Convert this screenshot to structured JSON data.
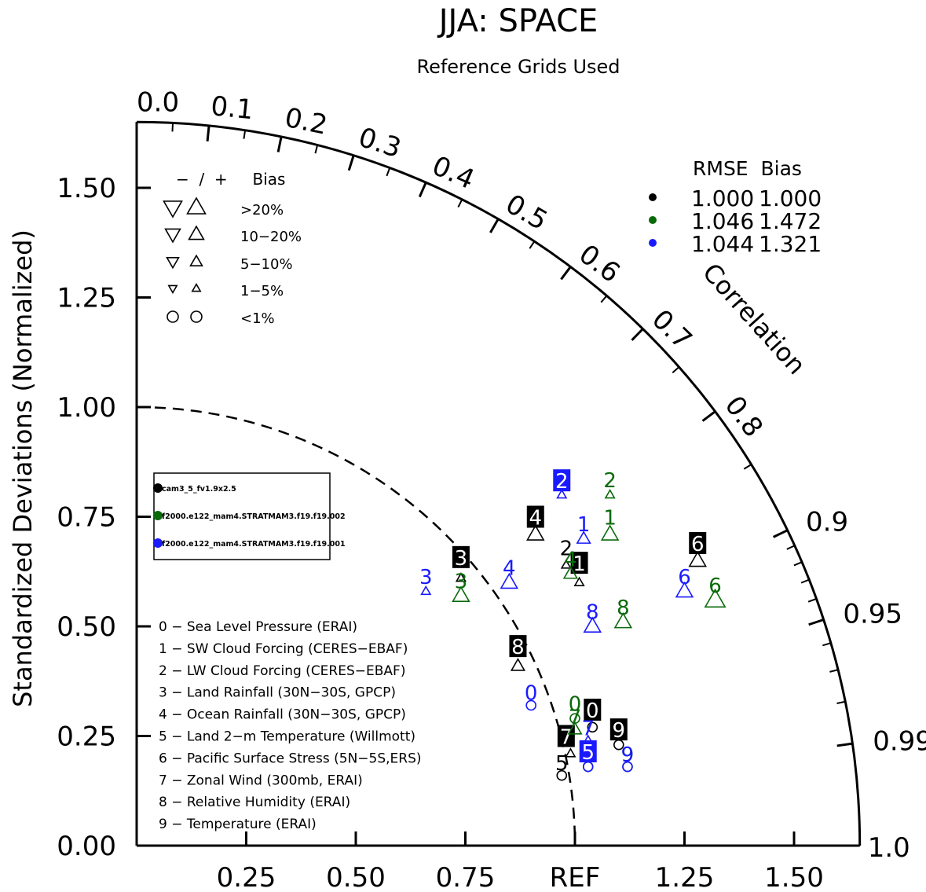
{
  "chart_data": {
    "type": "scatter",
    "subtype": "taylor-diagram",
    "title": "JJA: SPACE",
    "subtitle": "Reference Grids Used",
    "ylabel": "Standardized Deviations (Normalized)",
    "arc_label": "Correlation",
    "std_range": [
      0,
      1.65
    ],
    "reference_std": 1.0,
    "x_ticks": [
      {
        "value": 0.25,
        "label": "0.25"
      },
      {
        "value": 0.5,
        "label": "0.50"
      },
      {
        "value": 0.75,
        "label": "0.75"
      },
      {
        "value": 1.0,
        "label": "REF"
      },
      {
        "value": 1.25,
        "label": "1.25"
      },
      {
        "value": 1.5,
        "label": "1.50"
      }
    ],
    "y_ticks": [
      {
        "value": 0.0,
        "label": "0.00"
      },
      {
        "value": 0.25,
        "label": "0.25"
      },
      {
        "value": 0.5,
        "label": "0.50"
      },
      {
        "value": 0.75,
        "label": "0.75"
      },
      {
        "value": 1.0,
        "label": "1.00"
      },
      {
        "value": 1.25,
        "label": "1.25"
      },
      {
        "value": 1.5,
        "label": "1.50"
      }
    ],
    "correlation_ticks": [
      {
        "value": 0.0,
        "label": "0.0"
      },
      {
        "value": 0.1,
        "label": "0.1"
      },
      {
        "value": 0.2,
        "label": "0.2"
      },
      {
        "value": 0.3,
        "label": "0.3"
      },
      {
        "value": 0.4,
        "label": "0.4"
      },
      {
        "value": 0.5,
        "label": "0.5"
      },
      {
        "value": 0.6,
        "label": "0.6"
      },
      {
        "value": 0.7,
        "label": "0.7"
      },
      {
        "value": 0.8,
        "label": "0.8"
      },
      {
        "value": 0.9,
        "label": "0.9"
      },
      {
        "value": 0.95,
        "label": "0.95"
      },
      {
        "value": 0.99,
        "label": "0.99"
      },
      {
        "value": 1.0,
        "label": "1.0"
      }
    ],
    "minor_correlation_ticks": [
      0.05,
      0.15,
      0.25,
      0.35,
      0.45,
      0.55,
      0.65,
      0.75,
      0.85,
      0.91,
      0.92,
      0.93,
      0.94,
      0.96,
      0.97,
      0.98
    ],
    "bias_legend": {
      "header": "−  /  +     Bias",
      "rows": [
        {
          "label": ">20%",
          "marker": "triangle",
          "size": 1.0
        },
        {
          "label": "10−20%",
          "marker": "triangle",
          "size": 0.82
        },
        {
          "label": "5−10%",
          "marker": "triangle",
          "size": 0.65
        },
        {
          "label": "1−5%",
          "marker": "triangle",
          "size": 0.45
        },
        {
          "label": "<1%",
          "marker": "circle",
          "size": 0.7
        }
      ]
    },
    "rmse_bias_table": {
      "header": "RMSE  Bias",
      "rows": [
        {
          "color": "#000000",
          "rmse": "1.000",
          "bias": "1.000"
        },
        {
          "color": "#0a6a0a",
          "rmse": "1.046",
          "bias": "1.472"
        },
        {
          "color": "#1a1aff",
          "rmse": "1.044",
          "bias": "1.321"
        }
      ]
    },
    "case_legend": [
      {
        "name": "cam3_5_fv1.9x2.5",
        "color": "#000000"
      },
      {
        "name": "f2000.e122_mam4.STRATMAM3.f19.f19.002",
        "color": "#0a6a0a"
      },
      {
        "name": "f2000.e122_mam4.STRATMAM3.f19.f19.001",
        "color": "#1a1aff"
      }
    ],
    "variables": [
      "0 − Sea Level Pressure (ERAI)",
      "1 − SW Cloud Forcing (CERES−EBAF)",
      "2 − LW Cloud Forcing (CERES−EBAF)",
      "3 − Land Rainfall (30N−30S, GPCP)",
      "4 − Ocean Rainfall (30N−30S, GPCP)",
      "5 − Land 2−m Temperature (Willmott)",
      "6 − Pacific Surface Stress (5N−5S,ERS)",
      "7 − Zonal Wind (300mb, ERAI)",
      "8 − Relative Humidity (ERAI)",
      "9 − Temperature (ERAI)"
    ],
    "series": [
      {
        "name": "cam3_5_fv1.9x2.5",
        "color": "#000000",
        "points": [
          {
            "id": "0",
            "x": 1.04,
            "y": 0.27,
            "marker": "circle",
            "bias_size": 0.7,
            "label_box": true,
            "label_x": 1.04,
            "label_y": 0.31
          },
          {
            "id": "1",
            "x": 1.01,
            "y": 0.6,
            "marker": "triangle_up",
            "bias_size": 0.45,
            "label_box": true,
            "label_x": 1.01,
            "label_y": 0.645
          },
          {
            "id": "2",
            "x": 0.98,
            "y": 0.64,
            "marker": "triangle_up",
            "bias_size": 0.45,
            "label_box": false,
            "label_x": 0.98,
            "label_y": 0.68
          },
          {
            "id": "3",
            "x": 0.74,
            "y": 0.61,
            "marker": "triangle_up",
            "bias_size": 0.45,
            "label_box": true,
            "label_x": 0.74,
            "label_y": 0.658
          },
          {
            "id": "4",
            "x": 0.91,
            "y": 0.71,
            "marker": "triangle_up",
            "bias_size": 0.82,
            "label_box": true,
            "label_x": 0.91,
            "label_y": 0.75
          },
          {
            "id": "5",
            "x": 0.97,
            "y": 0.16,
            "marker": "circle",
            "bias_size": 0.7,
            "label_box": false,
            "label_x": 0.97,
            "label_y": 0.19
          },
          {
            "id": "6",
            "x": 1.28,
            "y": 0.65,
            "marker": "triangle_up",
            "bias_size": 0.82,
            "label_box": true,
            "label_x": 1.28,
            "label_y": 0.69
          },
          {
            "id": "7",
            "x": 0.99,
            "y": 0.21,
            "marker": "triangle_up",
            "bias_size": 0.45,
            "label_box": true,
            "label_x": 0.98,
            "label_y": 0.25
          },
          {
            "id": "8",
            "x": 0.87,
            "y": 0.41,
            "marker": "triangle_up",
            "bias_size": 0.65,
            "label_box": true,
            "label_x": 0.87,
            "label_y": 0.455
          },
          {
            "id": "9",
            "x": 1.1,
            "y": 0.23,
            "marker": "circle",
            "bias_size": 0.7,
            "label_box": true,
            "label_x": 1.1,
            "label_y": 0.265
          }
        ]
      },
      {
        "name": "f2000.e122_mam4.STRATMAM3.f19.f19.002",
        "color": "#0a6a0a",
        "points": [
          {
            "id": "0",
            "x": 1.0,
            "y": 0.29,
            "marker": "circle",
            "bias_size": 0.7,
            "label_box": false,
            "label_x": 1.0,
            "label_y": 0.325
          },
          {
            "id": "1",
            "x": 1.08,
            "y": 0.71,
            "marker": "triangle_up",
            "bias_size": 0.82,
            "label_box": false,
            "label_x": 1.08,
            "label_y": 0.75
          },
          {
            "id": "2",
            "x": 1.08,
            "y": 0.8,
            "marker": "triangle_up",
            "bias_size": 0.45,
            "label_box": false,
            "label_x": 1.08,
            "label_y": 0.835
          },
          {
            "id": "3",
            "x": 0.74,
            "y": 0.57,
            "marker": "triangle_up",
            "bias_size": 0.82,
            "label_box": false,
            "label_x": 0.74,
            "label_y": 0.605
          },
          {
            "id": "4",
            "x": 0.99,
            "y": 0.62,
            "marker": "triangle_up",
            "bias_size": 0.65,
            "label_box": false,
            "label_x": 0.99,
            "label_y": 0.655
          },
          {
            "id": "5",
            "x": 1.03,
            "y": 0.18,
            "marker": "circle",
            "bias_size": 0.7,
            "label_box": false,
            "label_x": 1.03,
            "label_y": 0.21
          },
          {
            "id": "6",
            "x": 1.32,
            "y": 0.56,
            "marker": "triangle_up",
            "bias_size": 1.0,
            "label_box": false,
            "label_x": 1.32,
            "label_y": 0.595
          },
          {
            "id": "7",
            "x": 1.0,
            "y": 0.265,
            "marker": "triangle_up",
            "bias_size": 0.65,
            "label_box": false,
            "label_x": 1.0,
            "label_y": 0.295
          },
          {
            "id": "8",
            "x": 1.11,
            "y": 0.51,
            "marker": "triangle_up",
            "bias_size": 0.82,
            "label_box": false,
            "label_x": 1.11,
            "label_y": 0.545
          },
          {
            "id": "9",
            "x": 1.12,
            "y": 0.18,
            "marker": "circle",
            "bias_size": 0.7,
            "label_box": false,
            "label_x": 1.12,
            "label_y": 0.21
          }
        ]
      },
      {
        "name": "f2000.e122_mam4.STRATMAM3.f19.f19.001",
        "color": "#1a1aff",
        "points": [
          {
            "id": "0",
            "x": 0.9,
            "y": 0.32,
            "marker": "circle",
            "bias_size": 0.7,
            "label_box": false,
            "label_x": 0.9,
            "label_y": 0.35
          },
          {
            "id": "1",
            "x": 1.02,
            "y": 0.7,
            "marker": "triangle_up",
            "bias_size": 0.65,
            "label_box": false,
            "label_x": 1.02,
            "label_y": 0.735
          },
          {
            "id": "2",
            "x": 0.97,
            "y": 0.8,
            "marker": "triangle_up",
            "bias_size": 0.45,
            "label_box": true,
            "label_x": 0.97,
            "label_y": 0.833
          },
          {
            "id": "3",
            "x": 0.66,
            "y": 0.58,
            "marker": "triangle_up",
            "bias_size": 0.45,
            "label_box": false,
            "label_x": 0.66,
            "label_y": 0.615
          },
          {
            "id": "4",
            "x": 0.85,
            "y": 0.6,
            "marker": "triangle_up",
            "bias_size": 0.82,
            "label_box": false,
            "label_x": 0.85,
            "label_y": 0.635
          },
          {
            "id": "5",
            "x": 1.03,
            "y": 0.18,
            "marker": "circle",
            "bias_size": 0.7,
            "label_box": true,
            "label_x": 1.03,
            "label_y": 0.215
          },
          {
            "id": "6",
            "x": 1.25,
            "y": 0.58,
            "marker": "triangle_up",
            "bias_size": 0.82,
            "label_box": false,
            "label_x": 1.25,
            "label_y": 0.615
          },
          {
            "id": "7",
            "x": 1.03,
            "y": 0.24,
            "marker": "triangle_up",
            "bias_size": 0.45,
            "label_box": false,
            "label_x": 1.03,
            "label_y": 0.27
          },
          {
            "id": "8",
            "x": 1.04,
            "y": 0.5,
            "marker": "triangle_up",
            "bias_size": 0.82,
            "label_box": false,
            "label_x": 1.04,
            "label_y": 0.535
          },
          {
            "id": "9",
            "x": 1.12,
            "y": 0.18,
            "marker": "circle",
            "bias_size": 0.7,
            "label_box": false,
            "label_x": 1.12,
            "label_y": 0.21
          }
        ]
      }
    ]
  }
}
